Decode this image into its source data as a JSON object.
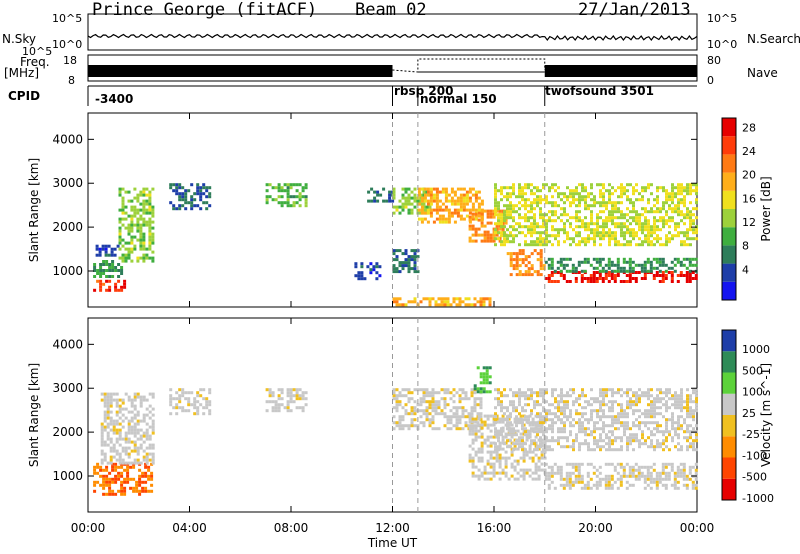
{
  "header": {
    "station": "Prince George (fitACF)",
    "beam": "Beam 02",
    "date": "27/Jan/2013"
  },
  "summary_panels": {
    "nsky_label": "N.Sky",
    "nsearch_label": "N.Search",
    "nsky_ticks": [
      "10^5",
      "10^0"
    ],
    "nsearch_ticks": [
      "10^5",
      "10^0"
    ],
    "freq_label": "Freq.",
    "freq_unit": "[MHz]",
    "freq_ticks": [
      "18",
      "8"
    ],
    "nave_label": "Nave",
    "nave_ticks": [
      "80",
      "0"
    ],
    "cpid_label": "CPID",
    "cpid_segments": [
      {
        "label": "-3400",
        "start_hour": 0
      },
      {
        "label": "rbsp 200",
        "start_hour": 12
      },
      {
        "label": "normal 150",
        "start_hour": 13
      },
      {
        "label": "twofsound 3501",
        "start_hour": 18
      }
    ]
  },
  "chart_data": [
    {
      "type": "heatmap",
      "title": "",
      "xlabel": "Time UT",
      "ylabel": "Slant Range [km]",
      "xlim": [
        0,
        24
      ],
      "ylim": [
        180,
        4600
      ],
      "x_ticks": [
        "00:00",
        "04:00",
        "08:00",
        "12:00",
        "16:00",
        "20:00",
        "00:00"
      ],
      "y_ticks": [
        1000,
        2000,
        3000,
        4000
      ],
      "colorbar": {
        "label": "Power [dB]",
        "ticks": [
          4,
          8,
          12,
          16,
          20,
          24,
          28
        ],
        "colors": [
          "#1414f0",
          "#1e3ea8",
          "#2e7d5a",
          "#3fae3f",
          "#9dd13b",
          "#f0e01e",
          "#ffae1a",
          "#ff7a14",
          "#ff3c0a",
          "#e60000"
        ]
      },
      "echo_regions": [
        {
          "t0": 0.2,
          "t1": 1.5,
          "r0": 550,
          "r1": 800,
          "value": 26
        },
        {
          "t0": 0.2,
          "t1": 1.3,
          "r0": 850,
          "r1": 1250,
          "value": 10
        },
        {
          "t0": 0.3,
          "t1": 1.2,
          "r0": 1350,
          "r1": 1600,
          "value": 6
        },
        {
          "t0": 1.2,
          "t1": 2.6,
          "r0": 1200,
          "r1": 2900,
          "value": 14
        },
        {
          "t0": 3.2,
          "t1": 4.8,
          "r0": 2400,
          "r1": 3000,
          "value": 8
        },
        {
          "t0": 7.0,
          "t1": 8.6,
          "r0": 2500,
          "r1": 3000,
          "value": 12
        },
        {
          "t0": 10.5,
          "t1": 11.5,
          "r0": 800,
          "r1": 1200,
          "value": 6
        },
        {
          "t0": 11.0,
          "t1": 12.0,
          "r0": 2600,
          "r1": 2900,
          "value": 8
        },
        {
          "t0": 12.0,
          "t1": 13.0,
          "r0": 1000,
          "r1": 1500,
          "value": 8
        },
        {
          "t0": 12.0,
          "t1": 13.5,
          "r0": 2300,
          "r1": 2900,
          "value": 14
        },
        {
          "t0": 13.0,
          "t1": 15.5,
          "r0": 2100,
          "r1": 2900,
          "value": 20
        },
        {
          "t0": 15.0,
          "t1": 16.5,
          "r0": 1700,
          "r1": 2400,
          "value": 22
        },
        {
          "t0": 16.5,
          "t1": 18.0,
          "r0": 900,
          "r1": 1500,
          "value": 22
        },
        {
          "t0": 18.0,
          "t1": 24.0,
          "r0": 750,
          "r1": 1000,
          "value": 28
        },
        {
          "t0": 18.0,
          "t1": 24.0,
          "r0": 1000,
          "r1": 1300,
          "value": 10
        },
        {
          "t0": 16.0,
          "t1": 24.0,
          "r0": 1600,
          "r1": 3000,
          "value": 16
        },
        {
          "t0": 12.0,
          "t1": 16.0,
          "r0": 200,
          "r1": 400,
          "value": 20
        }
      ]
    },
    {
      "type": "heatmap",
      "title": "",
      "xlabel": "Time UT",
      "ylabel": "Slant Range [km]",
      "xlim": [
        0,
        24
      ],
      "ylim": [
        180,
        4600
      ],
      "x_ticks": [
        "00:00",
        "04:00",
        "08:00",
        "12:00",
        "16:00",
        "20:00",
        "00:00"
      ],
      "y_ticks": [
        1000,
        2000,
        3000,
        4000
      ],
      "colorbar": {
        "label": "Velocity [m s^-1]",
        "ticks": [
          1000,
          500,
          100,
          25,
          -25,
          -100,
          -500,
          -1000
        ],
        "colors": [
          "#1e3ea8",
          "#2e8b57",
          "#5cd23a",
          "#c8c8c8",
          "#f0c020",
          "#ff8c00",
          "#ff4500",
          "#e60000"
        ]
      },
      "echo_regions": [
        {
          "t0": 0.2,
          "t1": 2.5,
          "r0": 550,
          "r1": 1300,
          "value": -300
        },
        {
          "t0": 0.5,
          "t1": 2.6,
          "r0": 1300,
          "r1": 2900,
          "value": 0
        },
        {
          "t0": 3.2,
          "t1": 4.8,
          "r0": 2400,
          "r1": 3000,
          "value": 0
        },
        {
          "t0": 7.0,
          "t1": 8.6,
          "r0": 2500,
          "r1": 3000,
          "value": 0
        },
        {
          "t0": 12.0,
          "t1": 15.5,
          "r0": 2100,
          "r1": 3000,
          "value": 0
        },
        {
          "t0": 15.0,
          "t1": 18.0,
          "r0": 900,
          "r1": 2400,
          "value": 0
        },
        {
          "t0": 18.0,
          "t1": 24.0,
          "r0": 700,
          "r1": 1300,
          "value": 0
        },
        {
          "t0": 16.0,
          "t1": 24.0,
          "r0": 1600,
          "r1": 3000,
          "value": 0
        },
        {
          "t0": 15.2,
          "t1": 15.8,
          "r0": 2900,
          "r1": 3500,
          "value": 300
        }
      ]
    }
  ]
}
